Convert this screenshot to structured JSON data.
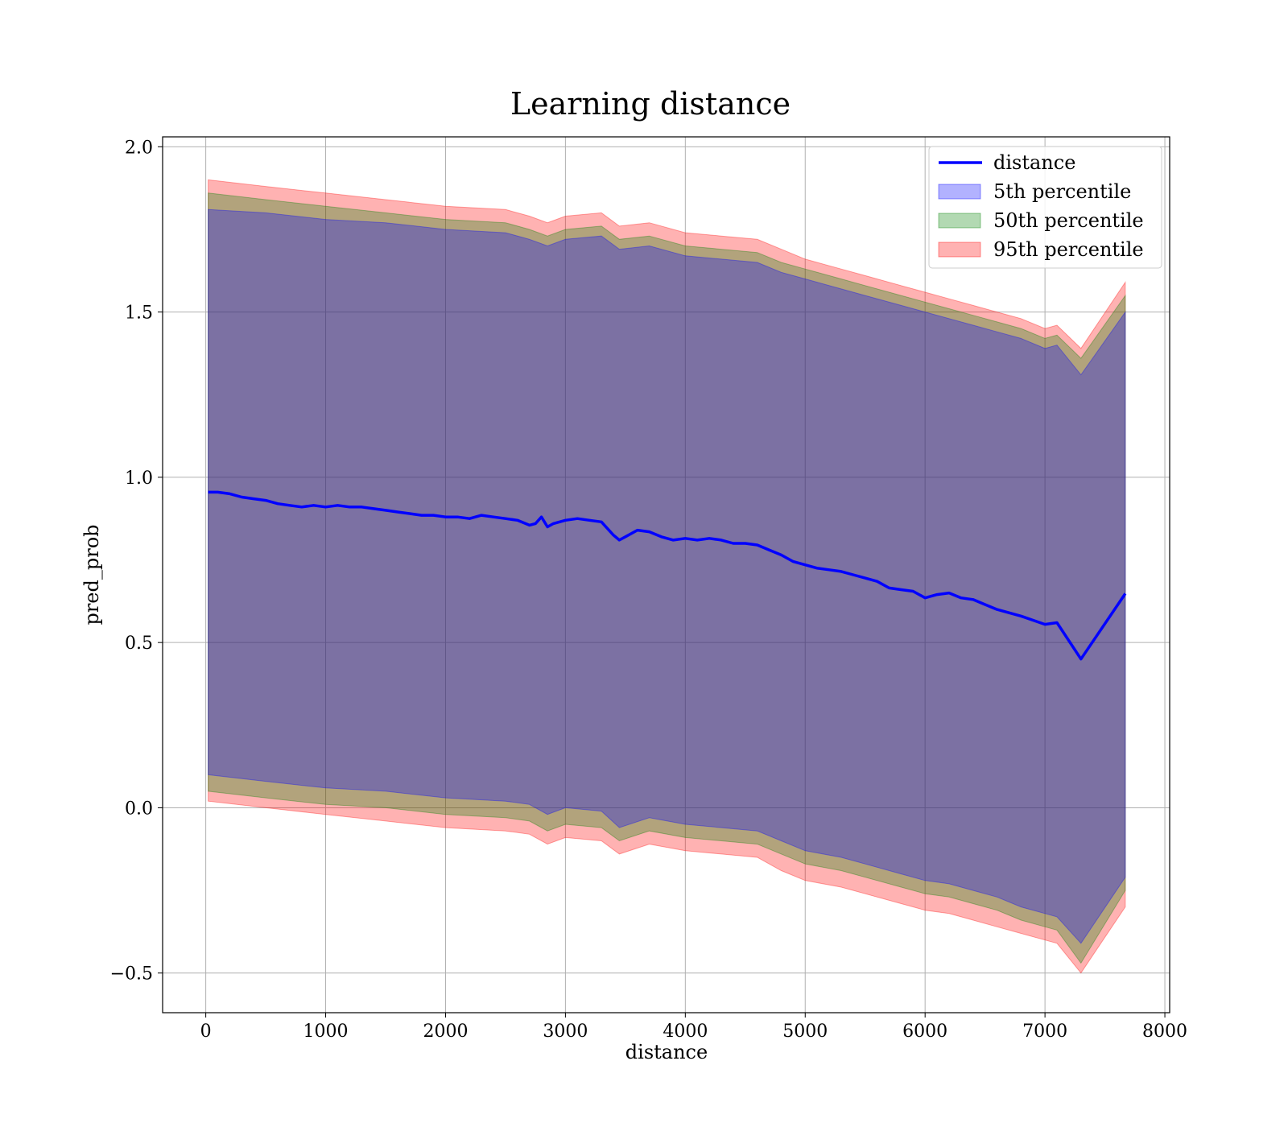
{
  "chart_data": {
    "type": "area",
    "title": "Learning distance",
    "xlabel": "distance",
    "ylabel": "pred_prob",
    "xlim": [
      -360,
      8040
    ],
    "ylim": [
      -0.62,
      2.03
    ],
    "xticks": [
      0,
      1000,
      2000,
      3000,
      4000,
      5000,
      6000,
      7000,
      8000
    ],
    "xtick_labels": [
      "0",
      "1000",
      "2000",
      "3000",
      "4000",
      "5000",
      "6000",
      "7000",
      "8000"
    ],
    "yticks": [
      -0.5,
      0.0,
      0.5,
      1.0,
      1.5,
      2.0
    ],
    "ytick_labels": [
      "−0.5",
      "0.0",
      "0.5",
      "1.0",
      "1.5",
      "2.0"
    ],
    "grid": true,
    "legend_position": "top-right",
    "colors": {
      "line": "#0000ff",
      "band_5": "#0000ff",
      "band_50": "#008000",
      "band_95": "#ff0000"
    },
    "line": {
      "name": "distance",
      "x": [
        20,
        100,
        200,
        300,
        400,
        500,
        600,
        700,
        800,
        900,
        1000,
        1100,
        1200,
        1300,
        1400,
        1500,
        1600,
        1700,
        1800,
        1900,
        2000,
        2100,
        2200,
        2300,
        2400,
        2500,
        2600,
        2700,
        2750,
        2800,
        2850,
        2900,
        3000,
        3100,
        3200,
        3300,
        3400,
        3450,
        3500,
        3600,
        3700,
        3800,
        3900,
        4000,
        4100,
        4200,
        4300,
        4400,
        4500,
        4600,
        4700,
        4800,
        4900,
        5000,
        5100,
        5200,
        5300,
        5400,
        5500,
        5600,
        5700,
        5800,
        5900,
        6000,
        6100,
        6200,
        6300,
        6400,
        6500,
        6600,
        6800,
        7000,
        7100,
        7300,
        7670
      ],
      "y": [
        0.955,
        0.955,
        0.95,
        0.94,
        0.935,
        0.93,
        0.92,
        0.915,
        0.91,
        0.915,
        0.91,
        0.915,
        0.91,
        0.91,
        0.905,
        0.9,
        0.895,
        0.89,
        0.885,
        0.885,
        0.88,
        0.88,
        0.875,
        0.885,
        0.88,
        0.875,
        0.87,
        0.855,
        0.86,
        0.88,
        0.85,
        0.86,
        0.87,
        0.875,
        0.87,
        0.865,
        0.825,
        0.81,
        0.82,
        0.84,
        0.835,
        0.82,
        0.81,
        0.815,
        0.81,
        0.815,
        0.81,
        0.8,
        0.8,
        0.795,
        0.78,
        0.765,
        0.745,
        0.735,
        0.725,
        0.72,
        0.715,
        0.705,
        0.695,
        0.685,
        0.665,
        0.66,
        0.655,
        0.635,
        0.645,
        0.65,
        0.635,
        0.63,
        0.615,
        0.6,
        0.58,
        0.555,
        0.56,
        0.45,
        0.648
      ]
    },
    "bands": [
      {
        "name": "5th percentile",
        "color": "#0000ff",
        "x": [
          20,
          500,
          1000,
          1500,
          2000,
          2500,
          2700,
          2850,
          3000,
          3300,
          3450,
          3700,
          4000,
          4300,
          4600,
          4800,
          5000,
          5300,
          5500,
          5800,
          6000,
          6200,
          6400,
          6600,
          6800,
          7000,
          7100,
          7300,
          7670
        ],
        "upper": [
          1.81,
          1.8,
          1.78,
          1.77,
          1.75,
          1.74,
          1.72,
          1.7,
          1.72,
          1.73,
          1.69,
          1.7,
          1.67,
          1.66,
          1.65,
          1.62,
          1.6,
          1.57,
          1.55,
          1.52,
          1.5,
          1.48,
          1.46,
          1.44,
          1.42,
          1.39,
          1.4,
          1.31,
          1.5
        ],
        "lower": [
          0.1,
          0.08,
          0.06,
          0.05,
          0.03,
          0.02,
          0.01,
          -0.02,
          0.0,
          -0.01,
          -0.06,
          -0.03,
          -0.05,
          -0.06,
          -0.07,
          -0.1,
          -0.13,
          -0.15,
          -0.17,
          -0.2,
          -0.22,
          -0.23,
          -0.25,
          -0.27,
          -0.3,
          -0.32,
          -0.33,
          -0.41,
          -0.21
        ]
      },
      {
        "name": "50th percentile",
        "color": "#008000",
        "x": [
          20,
          500,
          1000,
          1500,
          2000,
          2500,
          2700,
          2850,
          3000,
          3300,
          3450,
          3700,
          4000,
          4300,
          4600,
          4800,
          5000,
          5300,
          5500,
          5800,
          6000,
          6200,
          6400,
          6600,
          6800,
          7000,
          7100,
          7300,
          7670
        ],
        "upper": [
          1.86,
          1.84,
          1.82,
          1.8,
          1.78,
          1.77,
          1.75,
          1.73,
          1.75,
          1.76,
          1.72,
          1.73,
          1.7,
          1.69,
          1.68,
          1.65,
          1.63,
          1.6,
          1.58,
          1.55,
          1.53,
          1.51,
          1.49,
          1.47,
          1.45,
          1.42,
          1.43,
          1.36,
          1.55
        ],
        "lower": [
          0.05,
          0.03,
          0.01,
          0.0,
          -0.02,
          -0.03,
          -0.04,
          -0.07,
          -0.05,
          -0.06,
          -0.1,
          -0.07,
          -0.09,
          -0.1,
          -0.11,
          -0.14,
          -0.17,
          -0.19,
          -0.21,
          -0.24,
          -0.26,
          -0.27,
          -0.29,
          -0.31,
          -0.34,
          -0.36,
          -0.37,
          -0.47,
          -0.25
        ]
      },
      {
        "name": "95th percentile",
        "color": "#ff0000",
        "x": [
          20,
          500,
          1000,
          1500,
          2000,
          2500,
          2700,
          2850,
          3000,
          3300,
          3450,
          3700,
          4000,
          4300,
          4600,
          4800,
          5000,
          5300,
          5500,
          5800,
          6000,
          6200,
          6400,
          6600,
          6800,
          7000,
          7100,
          7300,
          7670
        ],
        "upper": [
          1.9,
          1.88,
          1.86,
          1.84,
          1.82,
          1.81,
          1.79,
          1.77,
          1.79,
          1.8,
          1.76,
          1.77,
          1.74,
          1.73,
          1.72,
          1.69,
          1.66,
          1.63,
          1.61,
          1.58,
          1.56,
          1.54,
          1.52,
          1.5,
          1.48,
          1.45,
          1.46,
          1.39,
          1.59
        ],
        "lower": [
          0.02,
          0.0,
          -0.02,
          -0.04,
          -0.06,
          -0.07,
          -0.08,
          -0.11,
          -0.09,
          -0.1,
          -0.14,
          -0.11,
          -0.13,
          -0.14,
          -0.15,
          -0.19,
          -0.22,
          -0.24,
          -0.26,
          -0.29,
          -0.31,
          -0.32,
          -0.34,
          -0.36,
          -0.38,
          -0.4,
          -0.41,
          -0.5,
          -0.3
        ]
      }
    ],
    "legend": [
      "distance",
      "5th percentile",
      "50th percentile",
      "95th percentile"
    ]
  }
}
